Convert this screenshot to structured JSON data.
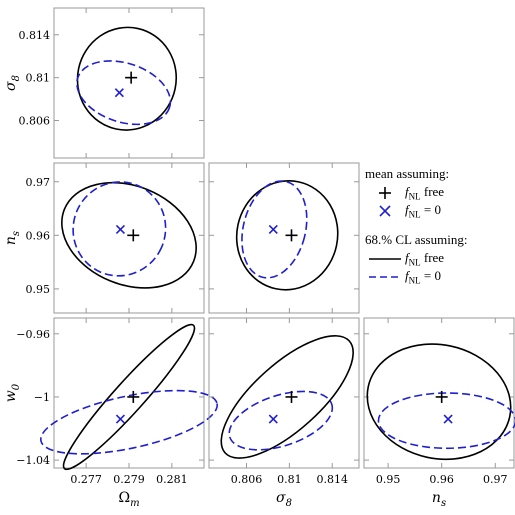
{
  "chart_data": {
    "type": "scatter",
    "description_kind": "triangle plot of 2D confidence ellipses",
    "colors": {
      "free": "#000000",
      "zero": "#1f1fd0",
      "frame": "#999999"
    },
    "parameters": [
      {
        "key": "Om",
        "label": "Ω",
        "sub": "m",
        "range": [
          0.2755,
          0.2825
        ],
        "ticks": [
          0.277,
          0.279,
          0.281
        ],
        "tick_labels": [
          "0.277",
          "0.279",
          "0.281"
        ]
      },
      {
        "key": "s8",
        "label": "σ",
        "sub": "8",
        "range": [
          0.8025,
          0.8165
        ],
        "ticks": [
          0.806,
          0.81,
          0.814
        ],
        "tick_labels": [
          "0.806",
          "0.81",
          "0.814"
        ]
      },
      {
        "key": "ns",
        "label": "n",
        "sub": "s",
        "range": [
          0.9455,
          0.9735
        ],
        "ticks": [
          0.95,
          0.96,
          0.97
        ],
        "tick_labels": [
          "0.95",
          "0.96",
          "0.97"
        ]
      },
      {
        "key": "w0",
        "label": "w",
        "sub": "0",
        "range": [
          -1.045,
          -0.95
        ],
        "ticks": [
          -1.04,
          -1.0,
          -0.96
        ],
        "tick_labels": [
          "-1.04",
          "-1",
          "-0.96"
        ]
      }
    ],
    "panels": [
      {
        "x": "Om",
        "y": "s8",
        "mean_free": [
          0.2791,
          0.81
        ],
        "mean_zero": [
          0.27855,
          0.8086
        ],
        "ellipse_free": {
          "center": [
            0.2789,
            0.8099
          ],
          "semi": [
            0.0023,
            0.0048
          ],
          "angle_deg": -12
        },
        "ellipse_zero": {
          "center": [
            0.27875,
            0.8086
          ],
          "semi": [
            0.00225,
            0.00275
          ],
          "angle_deg": -18
        }
      },
      {
        "x": "Om",
        "y": "ns",
        "mean_free": [
          0.2792,
          0.96
        ],
        "mean_zero": [
          0.2786,
          0.9611
        ],
        "ellipse_free": {
          "center": [
            0.279,
            0.96
          ],
          "semi": [
            0.00325,
            0.0092
          ],
          "angle_deg": -22
        },
        "ellipse_zero": {
          "center": [
            0.27855,
            0.9612
          ],
          "semi": [
            0.00215,
            0.0088
          ],
          "angle_deg": -24
        }
      },
      {
        "x": "s8",
        "y": "ns",
        "mean_free": [
          0.8102,
          0.96
        ],
        "mean_zero": [
          0.8085,
          0.9611
        ],
        "ellipse_free": {
          "center": [
            0.8098,
            0.96
          ],
          "semi": [
            0.0047,
            0.0102
          ],
          "angle_deg": -12
        },
        "ellipse_zero": {
          "center": [
            0.8086,
            0.9611
          ],
          "semi": [
            0.0029,
            0.0092
          ],
          "angle_deg": -14
        }
      },
      {
        "x": "Om",
        "y": "w0",
        "mean_free": [
          0.2792,
          -1.0
        ],
        "mean_zero": [
          0.2786,
          -1.014
        ],
        "ellipse_free": {
          "center": [
            0.279,
            -1.0
          ],
          "semi": [
            0.0045,
            0.0095
          ],
          "angle_deg": 48
        },
        "ellipse_zero": {
          "center": [
            0.279,
            -1.016
          ],
          "semi": [
            0.0042,
            0.0165
          ],
          "angle_deg": 12
        }
      },
      {
        "x": "s8",
        "y": "w0",
        "mean_free": [
          0.8102,
          -1.0
        ],
        "mean_zero": [
          0.8085,
          -1.014
        ],
        "ellipse_free": {
          "center": [
            0.8098,
            -1.0
          ],
          "semi": [
            0.0078,
            0.021
          ],
          "angle_deg": 42
        },
        "ellipse_zero": {
          "center": [
            0.8092,
            -1.015
          ],
          "semi": [
            0.005,
            0.016
          ],
          "angle_deg": 18
        }
      },
      {
        "x": "ns",
        "y": "w0",
        "mean_free": [
          0.96,
          -1.0
        ],
        "mean_zero": [
          0.9612,
          -1.014
        ],
        "ellipse_free": {
          "center": [
            0.9595,
            -1.003
          ],
          "semi": [
            0.0135,
            0.036
          ],
          "angle_deg": -12
        },
        "ellipse_zero": {
          "center": [
            0.961,
            -1.015
          ],
          "semi": [
            0.0128,
            0.0175
          ],
          "angle_deg": 0
        }
      }
    ],
    "legend": {
      "placement": "right-middle",
      "mean_heading": "mean assuming:",
      "ci_heading": "68.% CL assuming:",
      "free_label_f": "f",
      "free_label_sub": "NL",
      "free_label_rest": " free",
      "zero_label_rest": " = 0"
    }
  }
}
